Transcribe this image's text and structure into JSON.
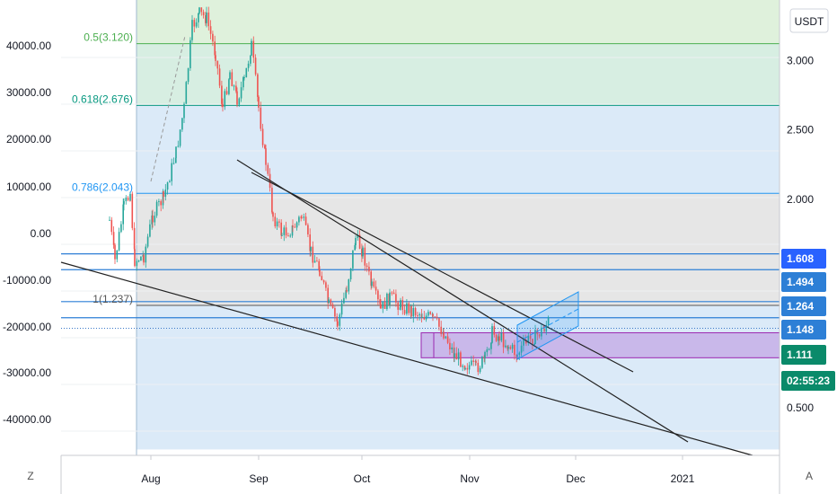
{
  "chart_data": {
    "type": "candlestick",
    "title": "",
    "symbol_unit": "USDT",
    "left_axis": {
      "ticks": [
        "40000.00",
        "30000.00",
        "20000.00",
        "10000.00",
        "0.00",
        "-10000.00",
        "-20000.00",
        "-30000.00",
        "-40000.00"
      ]
    },
    "right_axis": {
      "ticks": [
        "3.000",
        "2.500",
        "2.000",
        "0.500"
      ],
      "highlight_labels": [
        {
          "text": "1.608",
          "value": 1.608
        },
        {
          "text": "1.494",
          "value": 1.494
        },
        {
          "text": "1.264",
          "value": 1.264
        },
        {
          "text": "1.148",
          "value": 1.148
        },
        {
          "text": "1.111",
          "value": 1.111,
          "style": "current"
        },
        {
          "text": "02:55:23",
          "style": "countdown"
        }
      ]
    },
    "x_axis": {
      "ticks": [
        "Aug",
        "Sep",
        "Oct",
        "Nov",
        "Dec",
        "2021"
      ]
    },
    "fib_levels": [
      {
        "label": "0.5(3.120)",
        "value": 3.12,
        "color": "#4caf50"
      },
      {
        "label": "0.618(2.676)",
        "value": 2.676,
        "color": "#089981"
      },
      {
        "label": "0.786(2.043)",
        "value": 2.043,
        "color": "#2196f3"
      },
      {
        "label": "1(1.237)",
        "value": 1.237,
        "color": "#555555"
      }
    ],
    "fib_zones": [
      {
        "from": 3.12,
        "to": 3.5,
        "color": "#dff1dc"
      },
      {
        "from": 2.676,
        "to": 3.12,
        "color": "#d7eee2"
      },
      {
        "from": 2.043,
        "to": 2.676,
        "color": "#dbeaf8"
      },
      {
        "from": 1.237,
        "to": 2.043,
        "color": "#e6e6e6"
      },
      {
        "from": 0.2,
        "to": 1.237,
        "color": "#dbeaf8"
      }
    ],
    "current_price": 1.111,
    "demand_zone": {
      "from": 0.86,
      "to": 1.04,
      "color": "#c9b8ea",
      "border": "#9c27b0"
    },
    "colors": {
      "up": "#26a69a",
      "down": "#ef5350",
      "axis": "#8b8f96",
      "trendline": "#222222",
      "channel": "#2196f3"
    }
  },
  "bottom_bar": {
    "left_button": "Z",
    "right_button": "A"
  }
}
